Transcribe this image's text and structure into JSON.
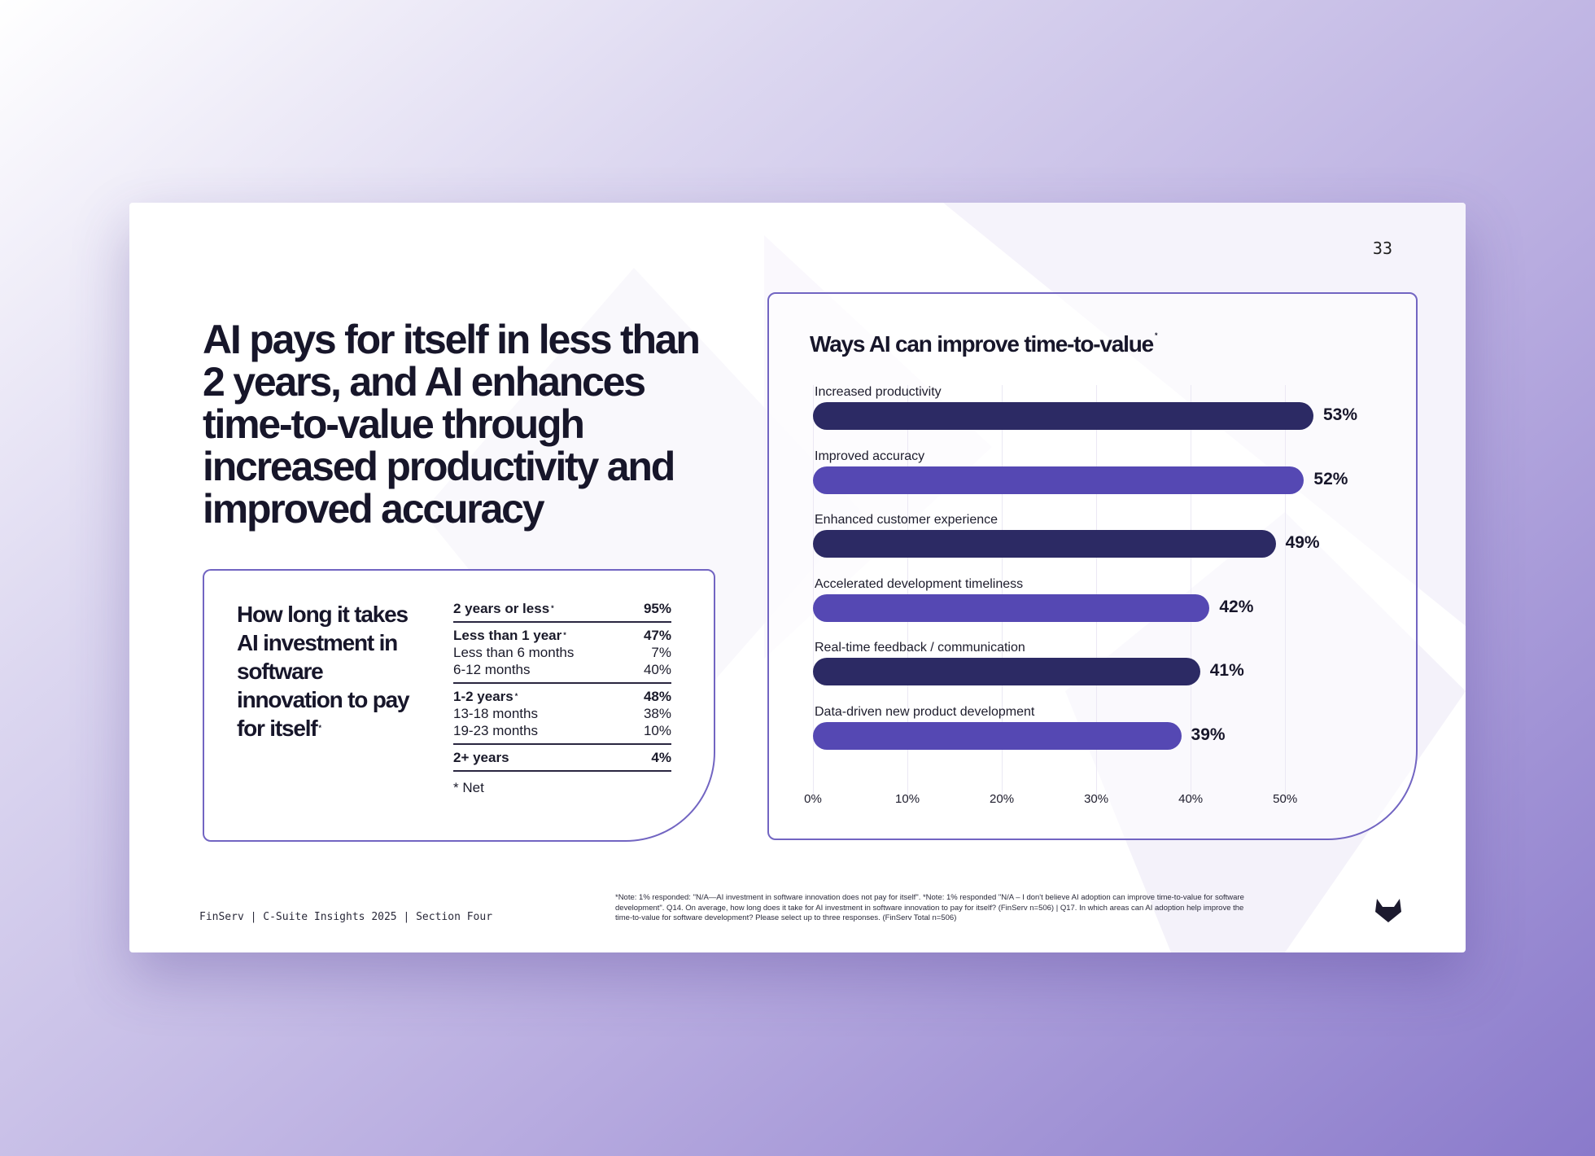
{
  "page_number": "33",
  "headline": "AI pays for itself in less than 2 years, and AI enhances time-to-value through increased productivity and improved accuracy",
  "payback": {
    "title": "How long it takes AI investment in software innovation to pay for itself",
    "title_marker": "*",
    "groups": [
      {
        "rows": [
          {
            "label": "2 years or less",
            "marker": "*",
            "value": "95%",
            "bold": true
          }
        ]
      },
      {
        "rows": [
          {
            "label": "Less than 1 year",
            "marker": "*",
            "value": "47%",
            "bold": true
          },
          {
            "label": "Less than 6 months",
            "value": "7%"
          },
          {
            "label": "6-12 months",
            "value": "40%"
          }
        ]
      },
      {
        "rows": [
          {
            "label": "1-2 years",
            "marker": "*",
            "value": "48%",
            "bold": true
          },
          {
            "label": "13-18 months",
            "value": "38%"
          },
          {
            "label": "19-23 months",
            "value": "10%"
          }
        ]
      },
      {
        "rows": [
          {
            "label": "2+ years",
            "value": "4%",
            "bold": true
          }
        ]
      }
    ],
    "footnote": "* Net"
  },
  "chart_data": {
    "type": "bar",
    "orientation": "horizontal",
    "title": "Ways AI can improve time-to-value",
    "title_marker": "*",
    "categories": [
      "Increased productivity",
      "Improved accuracy",
      "Enhanced customer experience",
      "Accelerated development timeliness",
      "Real-time feedback / communication",
      "Data-driven new product development"
    ],
    "values": [
      53,
      52,
      49,
      42,
      41,
      39
    ],
    "value_labels": [
      "53%",
      "52%",
      "49%",
      "42%",
      "41%",
      "39%"
    ],
    "xlim": [
      0,
      53
    ],
    "xticks": [
      0,
      10,
      20,
      30,
      40,
      50
    ],
    "xtick_labels": [
      "0%",
      "10%",
      "20%",
      "30%",
      "40%",
      "50%"
    ],
    "grid": true,
    "bar_colors": [
      "#2c2a64",
      "#5548b3",
      "#2c2a64",
      "#5548b3",
      "#2c2a64",
      "#5548b3"
    ]
  },
  "footer": {
    "left": "FinServ | C-Suite Insights 2025 | Section Four",
    "note": "*Note: 1% responded: \"N/A—AI investment in software innovation does not pay for itself\". *Note: 1% responded \"N/A – I don't believe AI adoption can improve time-to-value for software development\". Q14. On average, how long does it take for AI investment in software innovation to pay for itself? (FinServ n=506) | Q17. In which areas can AI adoption help improve the time-to-value for software development? Please select up to three responses. (FinServ Total n=506)"
  },
  "logo_icon": "gitlab-tanuki-icon",
  "colors": {
    "dark_bar": "#2c2a64",
    "mid_bar": "#5548b3",
    "card_border": "#7265c2"
  }
}
